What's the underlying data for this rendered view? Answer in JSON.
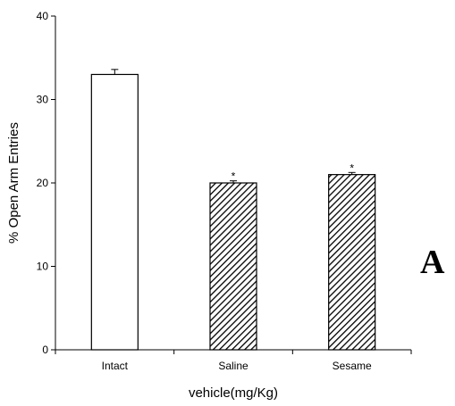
{
  "chart_data": {
    "type": "bar",
    "categories": [
      "Intact",
      "Saline",
      "Sesame"
    ],
    "values": [
      33,
      20,
      21
    ],
    "errors": [
      0.6,
      0.25,
      0.25
    ],
    "annotations": [
      "",
      "*",
      "*"
    ],
    "fills": [
      "plain",
      "hatched",
      "hatched"
    ],
    "xlabel": "vehicle(mg/Kg)",
    "ylabel": "% Open Arm Entries",
    "ylim": [
      0,
      40
    ],
    "yticks": [
      "0",
      "10",
      "20",
      "30",
      "40"
    ],
    "grid": false,
    "panel_label": "A"
  },
  "colors": {
    "bar_outline": "#000000",
    "plain_fill": "#ffffff",
    "hatch_stroke": "#000000",
    "axis": "#000000"
  }
}
